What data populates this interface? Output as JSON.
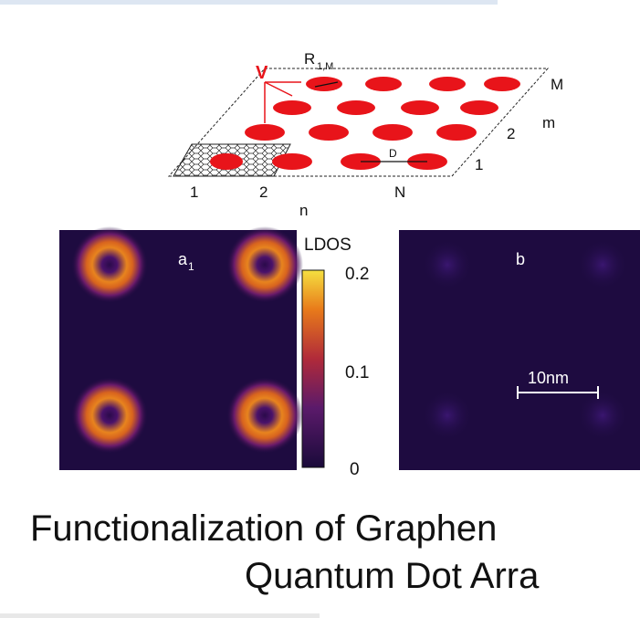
{
  "schematic": {
    "labels": {
      "R": "R",
      "R_sub": "1,M",
      "V": "V",
      "M": "M",
      "m": "m",
      "m_2": "2",
      "m_1": "1",
      "D": "D",
      "N": "N",
      "n": "n",
      "n_1": "1",
      "n_2": "2"
    }
  },
  "panel_a": {
    "label": "a",
    "label_sub": "1"
  },
  "colorbar": {
    "title": "LDOS",
    "ticks": [
      "0.2",
      "0.1",
      "0"
    ]
  },
  "panel_b": {
    "label": "b",
    "scale_bar": "10nm"
  },
  "title": {
    "line1": "Functionalization of Graphen",
    "line2": "Quantum Dot Arra"
  }
}
